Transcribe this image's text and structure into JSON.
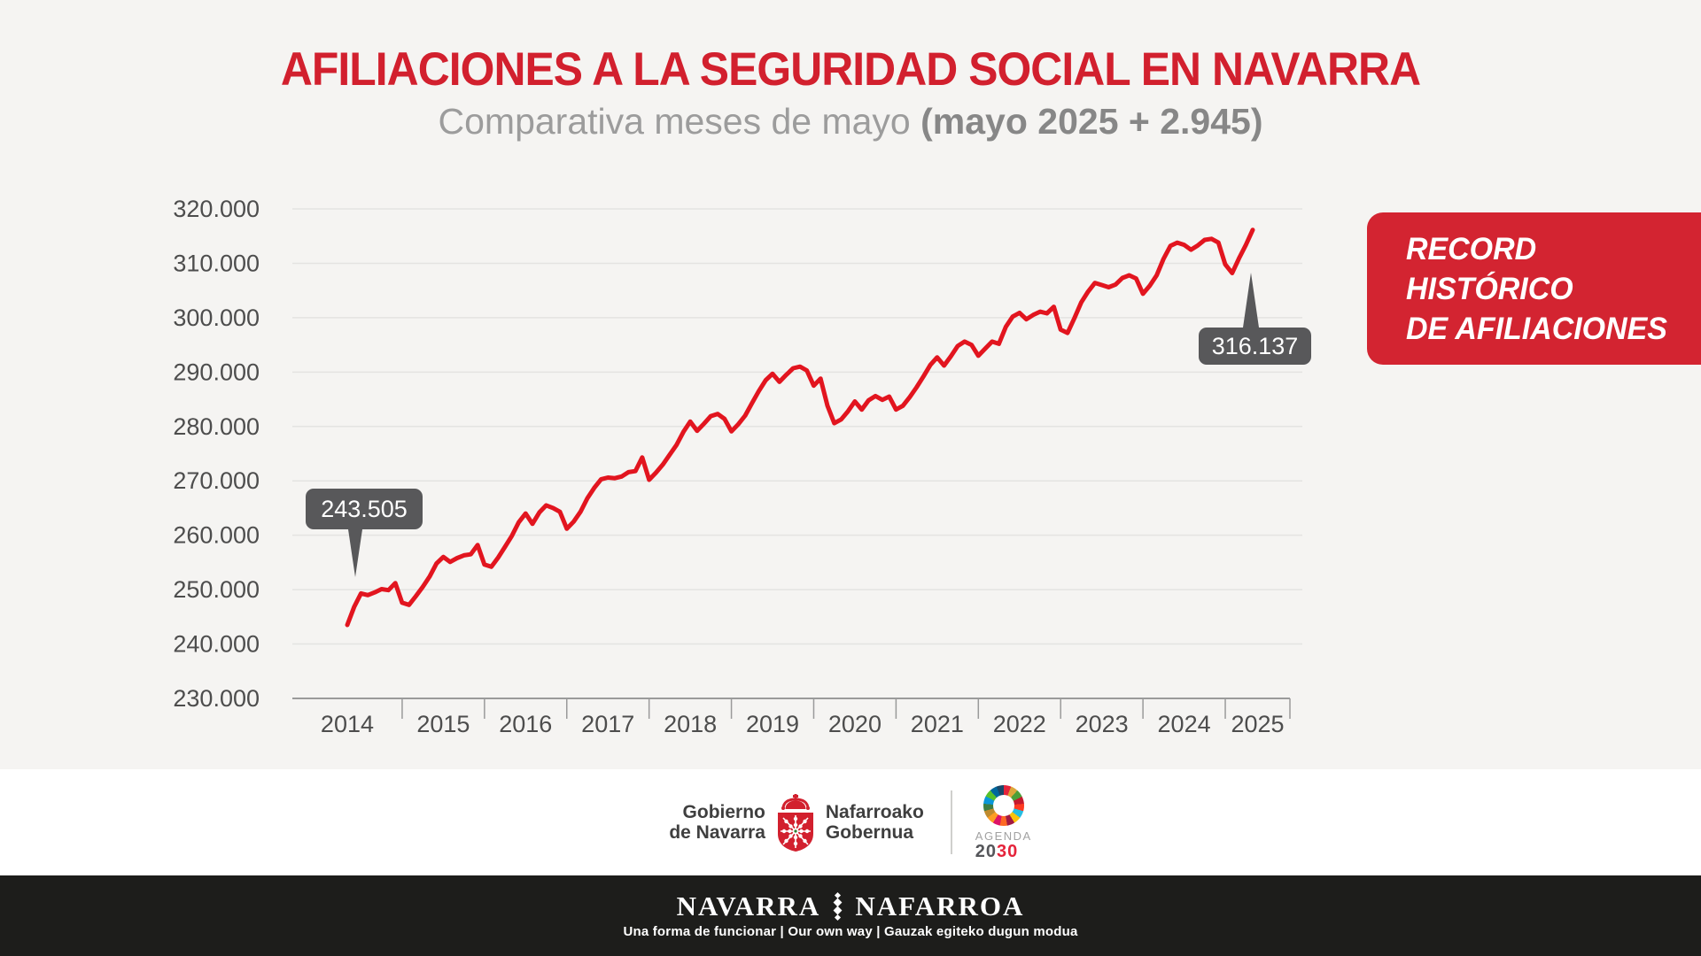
{
  "header": {
    "title": "AFILIACIONES A LA SEGURIDAD SOCIAL EN NAVARRA",
    "subtitle_regular": "Comparativa meses de mayo ",
    "subtitle_bold": "(mayo 2025 + 2.945)"
  },
  "annotations": {
    "start_label": "243.505",
    "end_label": "316.137"
  },
  "badge": {
    "lines": [
      "RECORD",
      "HISTÓRICO",
      "DE AFILIACIONES"
    ]
  },
  "chart_data": {
    "type": "line",
    "title": "Afiliaciones a la Seguridad Social en Navarra",
    "x_start_month": "2014-05",
    "x_end_month": "2025-05",
    "year_labels": [
      "2014",
      "2015",
      "2016",
      "2017",
      "2018",
      "2019",
      "2020",
      "2021",
      "2022",
      "2023",
      "2024",
      "2025"
    ],
    "ylim": [
      230000,
      320000
    ],
    "ytick_values": [
      320000,
      310000,
      300000,
      290000,
      280000,
      270000,
      260000,
      250000,
      240000,
      230000
    ],
    "ytick_labels": [
      "320.000",
      "310.000",
      "300.000",
      "290.000",
      "280.000",
      "270.000",
      "260.000",
      "250.000",
      "240.000",
      "230.000"
    ],
    "grid": true,
    "line_color": "#e2151f",
    "annotated_points": [
      {
        "month": "2014-05",
        "value": 243505,
        "label": "243.505"
      },
      {
        "month": "2025-05",
        "value": 316137,
        "label": "316.137"
      }
    ],
    "values": [
      243505,
      246800,
      249300,
      249000,
      249500,
      250100,
      249900,
      251200,
      247600,
      247200,
      248800,
      250500,
      252400,
      254800,
      256000,
      255100,
      255800,
      256300,
      256500,
      258200,
      254600,
      254200,
      255900,
      257900,
      259900,
      262400,
      264000,
      262100,
      264200,
      265500,
      265000,
      264300,
      261200,
      262500,
      264300,
      266800,
      268700,
      270300,
      270600,
      270500,
      270800,
      271600,
      271800,
      274300,
      270200,
      271500,
      273000,
      274800,
      276600,
      279000,
      280900,
      279200,
      280500,
      281900,
      282300,
      281400,
      279100,
      280400,
      282000,
      284300,
      286500,
      288500,
      289700,
      288200,
      289500,
      290700,
      291000,
      290300,
      287500,
      288800,
      283800,
      280600,
      281300,
      282800,
      284600,
      283100,
      284800,
      285600,
      284900,
      285500,
      283100,
      283800,
      285400,
      287200,
      289200,
      291300,
      292700,
      291200,
      292900,
      294800,
      295600,
      295000,
      293000,
      294300,
      295600,
      295200,
      298300,
      300200,
      300900,
      299700,
      300500,
      301100,
      300800,
      302000,
      297800,
      297200,
      299900,
      302800,
      304800,
      306400,
      306000,
      305600,
      306100,
      307300,
      307800,
      307200,
      304400,
      305900,
      307800,
      310800,
      313192,
      313800,
      313400,
      312500,
      313300,
      314300,
      314500,
      313800,
      309800,
      308200,
      310900,
      313400,
      316137
    ]
  },
  "footer": {
    "gobierno_line1": "Gobierno",
    "gobierno_line2": "de Navarra",
    "nafarroako_line1": "Nafarroako",
    "nafarroako_line2": "Gobernua",
    "agenda_small": "AGENDA",
    "agenda_dark": "20",
    "agenda_red": "30"
  },
  "bottombar": {
    "word_left": "NAVARRA",
    "word_right": "NAFARROA",
    "tagline": "Una forma de funcionar | Our own way | Gauzak egiteko dugun modua"
  }
}
